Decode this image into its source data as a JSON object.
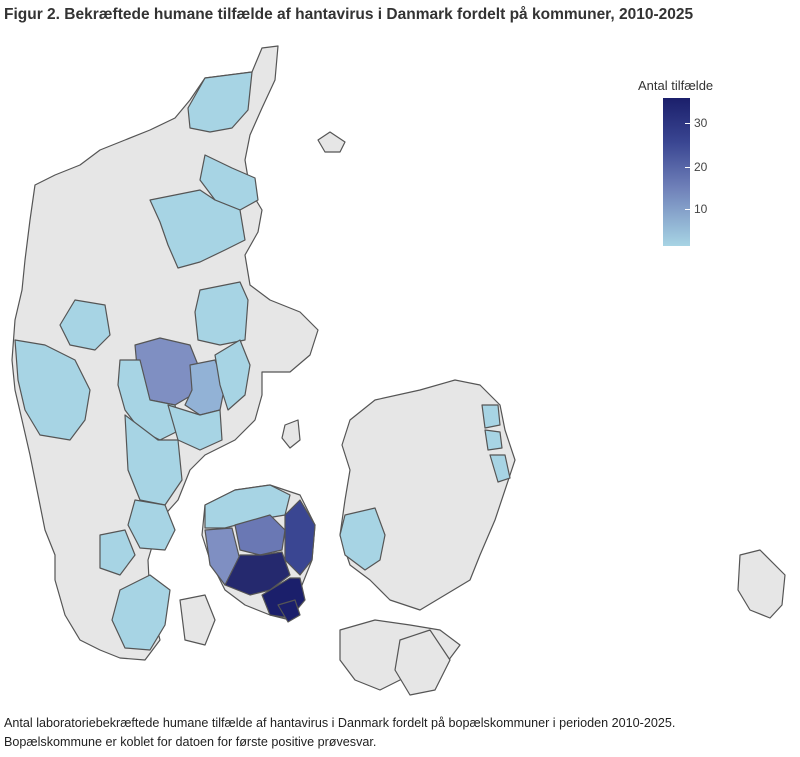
{
  "title": "Figur 2. Bekræftede humane tilfælde af hantavirus i Danmark fordelt på kommuner, 2010-2025",
  "legend": {
    "title": "Antal tilfælde",
    "ticks": [
      "30",
      "20",
      "10"
    ],
    "color_max": "#1b1f6b",
    "color_min": "#a7d4e4",
    "no_data_color": "#e6e6e6"
  },
  "caption": {
    "line1": "Antal laboratoriebekræftede humane tilfælde af hantavirus i Danmark fordelt på bopælskommuner i perioden 2010-2025.",
    "line2": "Bopælskommune er koblet for datoen for første positive prøvesvar."
  }
}
